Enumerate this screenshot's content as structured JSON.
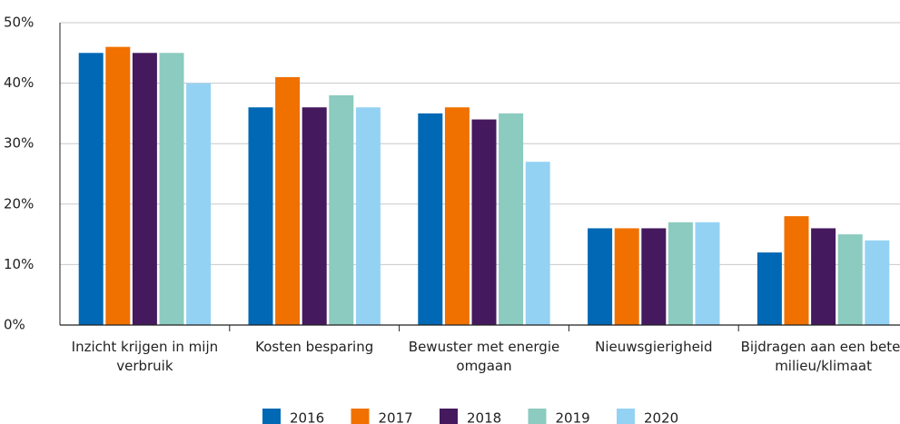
{
  "chart_data": {
    "type": "bar",
    "categories": [
      "Inzicht krijgen in mijn verbruik",
      "Kosten besparing",
      "Bewuster met energie omgaan",
      "Nieuwsgierigheid",
      "Bijdragen aan een beter milieu/klimaat"
    ],
    "series": [
      {
        "name": "2016",
        "color": "#0068b4",
        "values": [
          45,
          36,
          35,
          16,
          12
        ]
      },
      {
        "name": "2017",
        "color": "#f07000",
        "values": [
          46,
          41,
          36,
          16,
          18
        ]
      },
      {
        "name": "2018",
        "color": "#45195e",
        "values": [
          45,
          36,
          34,
          16,
          16
        ]
      },
      {
        "name": "2019",
        "color": "#8ccbbf",
        "values": [
          45,
          38,
          35,
          17,
          15
        ]
      },
      {
        "name": "2020",
        "color": "#94d2f4",
        "values": [
          40,
          36,
          27,
          17,
          14
        ]
      }
    ],
    "ylim": [
      0,
      50
    ],
    "yticks": [
      {
        "value": 0,
        "label": "0%"
      },
      {
        "value": 10,
        "label": "10%"
      },
      {
        "value": 20,
        "label": "20%"
      },
      {
        "value": 30,
        "label": "30%"
      },
      {
        "value": 40,
        "label": "40%"
      },
      {
        "value": 50,
        "label": "50%"
      }
    ],
    "grid": true,
    "legend": "bottom"
  }
}
